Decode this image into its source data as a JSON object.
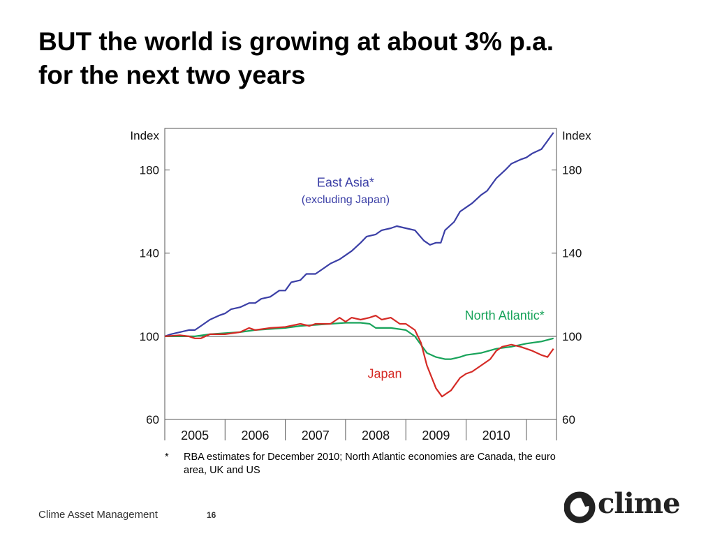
{
  "title": {
    "line1": "BUT the world is growing at about 3% p.a.",
    "line2": "for the next two years"
  },
  "chart_data": {
    "type": "line",
    "y_left_label": "Index",
    "y_right_label": "Index",
    "ylim": [
      60,
      200
    ],
    "yticks": [
      60,
      100,
      140,
      180
    ],
    "xlim": [
      2004.5,
      2011.0
    ],
    "xtick_labels": [
      "2005",
      "2006",
      "2007",
      "2008",
      "2009",
      "2010"
    ],
    "xtick_centers": [
      2005,
      2006,
      2007,
      2008,
      2009,
      2010
    ],
    "reference_line": 100,
    "series": [
      {
        "name": "East Asia*",
        "sublabel": "(excluding Japan)",
        "color": "#3b3fa6",
        "points": [
          [
            2004.5,
            100
          ],
          [
            2004.6,
            101
          ],
          [
            2004.75,
            102
          ],
          [
            2004.9,
            103
          ],
          [
            2005.0,
            103
          ],
          [
            2005.1,
            105
          ],
          [
            2005.25,
            108
          ],
          [
            2005.4,
            110
          ],
          [
            2005.5,
            111
          ],
          [
            2005.6,
            113
          ],
          [
            2005.75,
            114
          ],
          [
            2005.9,
            116
          ],
          [
            2006.0,
            116
          ],
          [
            2006.1,
            118
          ],
          [
            2006.25,
            119
          ],
          [
            2006.4,
            122
          ],
          [
            2006.5,
            122
          ],
          [
            2006.6,
            126
          ],
          [
            2006.75,
            127
          ],
          [
            2006.85,
            130
          ],
          [
            2007.0,
            130
          ],
          [
            2007.15,
            133
          ],
          [
            2007.25,
            135
          ],
          [
            2007.4,
            137
          ],
          [
            2007.5,
            139
          ],
          [
            2007.6,
            141
          ],
          [
            2007.75,
            145
          ],
          [
            2007.85,
            148
          ],
          [
            2008.0,
            149
          ],
          [
            2008.1,
            151
          ],
          [
            2008.25,
            152
          ],
          [
            2008.35,
            153
          ],
          [
            2008.5,
            152
          ],
          [
            2008.65,
            151
          ],
          [
            2008.8,
            146
          ],
          [
            2008.9,
            144
          ],
          [
            2009.0,
            145
          ],
          [
            2009.08,
            145
          ],
          [
            2009.15,
            151
          ],
          [
            2009.3,
            155
          ],
          [
            2009.4,
            160
          ],
          [
            2009.5,
            162
          ],
          [
            2009.6,
            164
          ],
          [
            2009.75,
            168
          ],
          [
            2009.85,
            170
          ],
          [
            2010.0,
            176
          ],
          [
            2010.15,
            180
          ],
          [
            2010.25,
            183
          ],
          [
            2010.4,
            185
          ],
          [
            2010.5,
            186
          ],
          [
            2010.6,
            188
          ],
          [
            2010.75,
            190
          ],
          [
            2010.85,
            194
          ],
          [
            2010.95,
            198
          ]
        ]
      },
      {
        "name": "North Atlantic*",
        "color": "#18a35a",
        "points": [
          [
            2004.5,
            100
          ],
          [
            2004.75,
            100
          ],
          [
            2005.0,
            100
          ],
          [
            2005.25,
            101
          ],
          [
            2005.5,
            101.5
          ],
          [
            2005.75,
            102
          ],
          [
            2006.0,
            103
          ],
          [
            2006.25,
            103.5
          ],
          [
            2006.5,
            104
          ],
          [
            2006.75,
            105
          ],
          [
            2007.0,
            105.5
          ],
          [
            2007.25,
            106
          ],
          [
            2007.5,
            106.5
          ],
          [
            2007.75,
            106.5
          ],
          [
            2007.9,
            106
          ],
          [
            2008.0,
            104
          ],
          [
            2008.25,
            104
          ],
          [
            2008.5,
            103
          ],
          [
            2008.65,
            100
          ],
          [
            2008.75,
            96
          ],
          [
            2008.85,
            92
          ],
          [
            2009.0,
            90
          ],
          [
            2009.15,
            89
          ],
          [
            2009.25,
            89
          ],
          [
            2009.4,
            90
          ],
          [
            2009.5,
            91
          ],
          [
            2009.75,
            92
          ],
          [
            2010.0,
            94
          ],
          [
            2010.25,
            95
          ],
          [
            2010.5,
            96.5
          ],
          [
            2010.75,
            97.5
          ],
          [
            2010.95,
            99
          ]
        ]
      },
      {
        "name": "Japan",
        "color": "#d52b26",
        "points": [
          [
            2004.5,
            100
          ],
          [
            2004.75,
            100.5
          ],
          [
            2004.9,
            100
          ],
          [
            2005.0,
            99
          ],
          [
            2005.1,
            99
          ],
          [
            2005.25,
            101
          ],
          [
            2005.5,
            101
          ],
          [
            2005.75,
            102
          ],
          [
            2005.9,
            104
          ],
          [
            2006.0,
            103
          ],
          [
            2006.25,
            104
          ],
          [
            2006.5,
            104.5
          ],
          [
            2006.75,
            106
          ],
          [
            2006.9,
            105
          ],
          [
            2007.0,
            106
          ],
          [
            2007.25,
            106
          ],
          [
            2007.4,
            109
          ],
          [
            2007.5,
            107
          ],
          [
            2007.6,
            109
          ],
          [
            2007.75,
            108
          ],
          [
            2007.9,
            109
          ],
          [
            2008.0,
            110
          ],
          [
            2008.1,
            108
          ],
          [
            2008.25,
            109
          ],
          [
            2008.4,
            106
          ],
          [
            2008.5,
            106
          ],
          [
            2008.65,
            103
          ],
          [
            2008.75,
            97
          ],
          [
            2008.85,
            86
          ],
          [
            2009.0,
            75
          ],
          [
            2009.1,
            71
          ],
          [
            2009.25,
            74
          ],
          [
            2009.4,
            80
          ],
          [
            2009.5,
            82
          ],
          [
            2009.6,
            83
          ],
          [
            2009.75,
            86
          ],
          [
            2009.9,
            89
          ],
          [
            2010.0,
            93
          ],
          [
            2010.1,
            95
          ],
          [
            2010.25,
            96
          ],
          [
            2010.4,
            95
          ],
          [
            2010.5,
            94
          ],
          [
            2010.6,
            93
          ],
          [
            2010.75,
            91
          ],
          [
            2010.85,
            90
          ],
          [
            2010.95,
            94
          ]
        ]
      }
    ],
    "footnote_mark": "*",
    "footnote": "RBA estimates for December 2010; North Atlantic economies are Canada, the euro area, UK and US"
  },
  "footer": {
    "company": "Clime Asset Management",
    "page": "16"
  },
  "logo": {
    "wordmark": "clime",
    "color": "#222222"
  }
}
